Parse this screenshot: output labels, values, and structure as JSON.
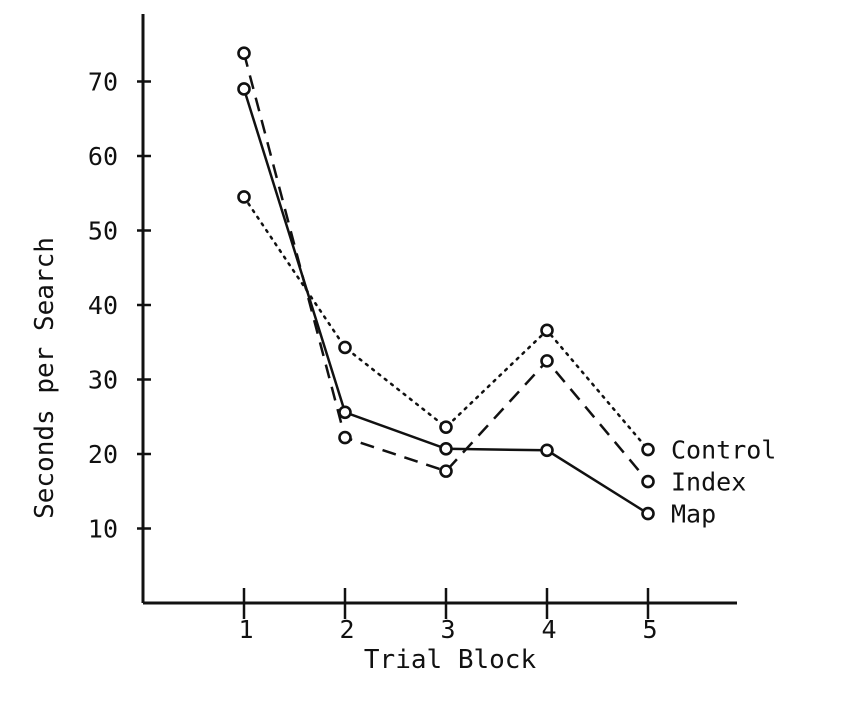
{
  "chart_data": {
    "type": "line",
    "title": "",
    "xlabel": "Trial Block",
    "ylabel": "Seconds per Search",
    "x": [
      1,
      2,
      3,
      4,
      5
    ],
    "x_tick_labels": [
      "1",
      "2",
      "3",
      "4",
      "5"
    ],
    "y_ticks": [
      10,
      20,
      30,
      40,
      50,
      60,
      70
    ],
    "y_tick_labels": [
      "10",
      "20",
      "30",
      "40",
      "50",
      "60",
      "70"
    ],
    "xlim": [
      0,
      5.9
    ],
    "ylim": [
      0,
      79
    ],
    "grid": false,
    "legend": "labels at right end of each line",
    "series": [
      {
        "name": "Control",
        "style": "dotted",
        "values": [
          54.5,
          34.3,
          23.6,
          36.6,
          20.6
        ]
      },
      {
        "name": "Index",
        "style": "dashed",
        "values": [
          73.8,
          22.2,
          17.7,
          32.5,
          16.3
        ]
      },
      {
        "name": "Map",
        "style": "solid",
        "values": [
          69.0,
          25.6,
          20.7,
          20.5,
          12.0
        ]
      }
    ]
  }
}
